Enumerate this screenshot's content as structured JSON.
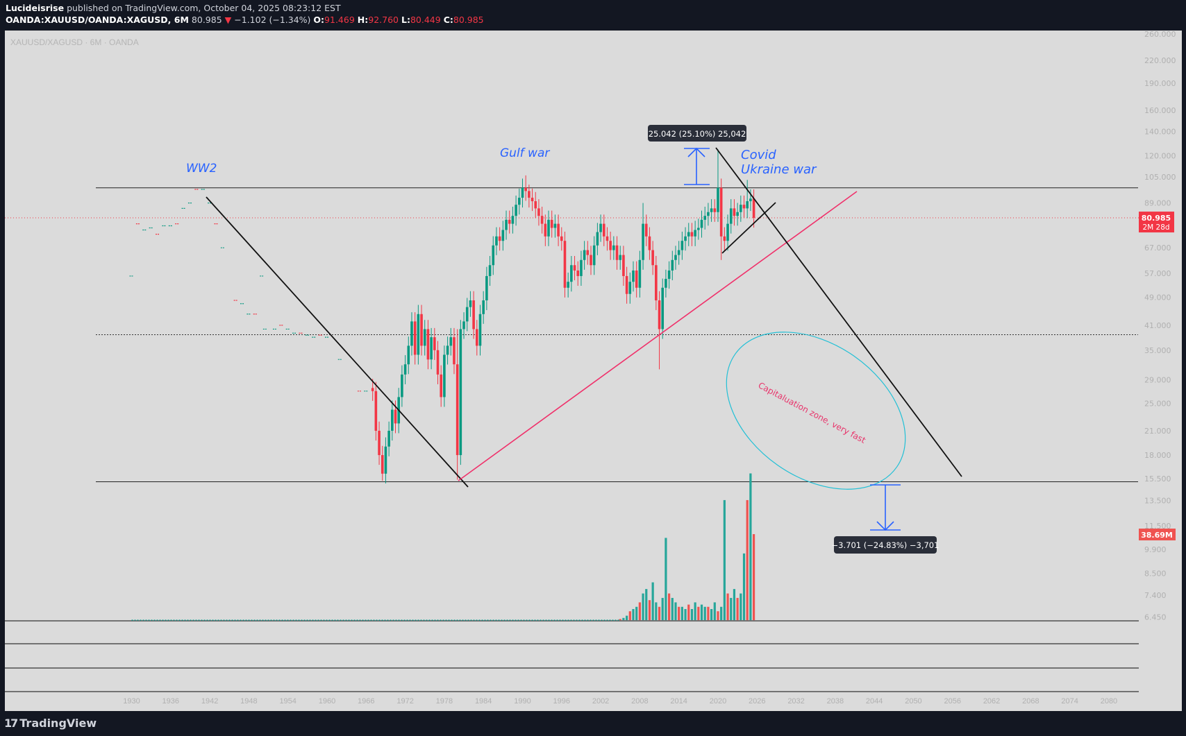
{
  "header": {
    "author": "Lucideisrise",
    "published": "published on TradingView.com, October 04, 2025 08:23:12 EST",
    "symbol": "OANDA:XAUUSD/OANDA:XAGUSD, 6M",
    "last": "80.985",
    "change": "−1.102 (−1.34%)",
    "o_label": "O:",
    "o": "91.469",
    "h_label": "H:",
    "h": "92.760",
    "l_label": "L:",
    "l": "80.449",
    "c_label": "C:",
    "c": "80.985"
  },
  "watermark": "XAUUSD/XAGUSD · 6M · OANDA",
  "footer": {
    "brand": "TradingView"
  },
  "colors": {
    "up": "#089981",
    "down": "#f23645",
    "vol_up": "#26a69a",
    "vol_down": "#ef5350",
    "annotation": "#2962ff",
    "trend_red": "#f0306a",
    "ellipse": "#22c0d6",
    "background": "#dbdbdb"
  },
  "chart_data": {
    "type": "candlestick",
    "title": "XAUUSD/XAGUSD · 6M · OANDA",
    "y_scale": "log",
    "ylim": [
      6.2,
      265
    ],
    "xlim": [
      1914,
      2092
    ],
    "y_ticks": [
      "260.000",
      "220.000",
      "190.000",
      "160.000",
      "140.000",
      "120.000",
      "105.000",
      "89.000",
      "67.000",
      "57.000",
      "49.000",
      "41.000",
      "35.000",
      "29.000",
      "25.000",
      "21.000",
      "18.000",
      "15.500",
      "13.500",
      "11.500",
      "9.900",
      "8.500",
      "7.400",
      "6.450"
    ],
    "x_ticks": [
      "1930",
      "1936",
      "1942",
      "1948",
      "1954",
      "1960",
      "1966",
      "1972",
      "1978",
      "1984",
      "1990",
      "1996",
      "2002",
      "2008",
      "2014",
      "2020",
      "2026",
      "2032",
      "2038",
      "2044",
      "2050",
      "2056",
      "2062",
      "2068",
      "2074",
      "2080"
    ],
    "early_points": [
      [
        1930,
        56
      ],
      [
        1931,
        78
      ],
      [
        1932,
        75
      ],
      [
        1933,
        76
      ],
      [
        1934,
        73
      ],
      [
        1935,
        77
      ],
      [
        1936,
        77
      ],
      [
        1937,
        78
      ],
      [
        1938,
        86
      ],
      [
        1939,
        89
      ],
      [
        1940,
        97
      ],
      [
        1941,
        97
      ],
      [
        1942,
        89
      ],
      [
        1943,
        78
      ],
      [
        1944,
        67
      ],
      [
        1950,
        56
      ],
      [
        1946,
        48
      ],
      [
        1947,
        47
      ],
      [
        1948,
        44
      ],
      [
        1949,
        44
      ],
      [
        1950.5,
        40
      ],
      [
        1952,
        40
      ],
      [
        1953,
        41
      ],
      [
        1954,
        40
      ],
      [
        1955,
        39
      ],
      [
        1956,
        39
      ],
      [
        1957,
        38.5
      ],
      [
        1958,
        38
      ],
      [
        1959,
        38.5
      ],
      [
        1960,
        38
      ],
      [
        1962,
        33
      ],
      [
        1965,
        27
      ],
      [
        1966,
        27
      ]
    ],
    "candles_start": 1967.0,
    "candles_step": 0.5,
    "closes": [
      27,
      21,
      18,
      16,
      19,
      21,
      24,
      22,
      26,
      30,
      32,
      36,
      42,
      34,
      44,
      36,
      40,
      33,
      38,
      35,
      30,
      26,
      34,
      36,
      38,
      32,
      18,
      40,
      42,
      46,
      48,
      40,
      36,
      44,
      48,
      56,
      60,
      68,
      72,
      70,
      75,
      80,
      78,
      82,
      88,
      92,
      98,
      96,
      92,
      90,
      86,
      82,
      78,
      72,
      80,
      76,
      78,
      72,
      70,
      52,
      54,
      60,
      58,
      56,
      62,
      66,
      64,
      60,
      68,
      74,
      78,
      72,
      70,
      66,
      68,
      62,
      64,
      56,
      50,
      54,
      58,
      52,
      62,
      78,
      72,
      66,
      60,
      48,
      40,
      52,
      55,
      58,
      62,
      64,
      66,
      70,
      72,
      74,
      72,
      75,
      76,
      80,
      82,
      84,
      86,
      84,
      98,
      72,
      70,
      78,
      86,
      82,
      84,
      88,
      86,
      90,
      91.5,
      80.985
    ],
    "wick_extremes": {
      "1968.5": {
        "low": 15.3
      },
      "1980.0": {
        "low": 15.4,
        "high": 40
      },
      "1990.5": {
        "high": 106
      },
      "1991.0": {
        "high": 100
      },
      "2011.0": {
        "low": 31
      },
      "2008.5": {
        "high": 89
      },
      "2020.0": {
        "high": 125
      },
      "2020.5": {
        "low": 62
      },
      "2024.5": {
        "high": 103
      }
    },
    "volume_start": 2005.0,
    "volume_unit": "M",
    "volume": [
      0.5,
      1,
      2,
      4,
      5,
      6,
      8,
      12,
      14,
      9,
      17,
      8,
      6,
      10,
      37,
      12,
      10,
      8,
      6,
      6,
      5,
      7,
      5,
      8,
      6,
      7,
      6,
      6,
      5,
      8,
      4,
      6,
      54,
      12,
      10,
      14,
      10,
      12,
      30,
      54,
      66,
      38.69
    ],
    "last_price_label": "80.985",
    "countdown_label": "2M 28d",
    "volume_label": "38.69M",
    "horizontal_levels": [
      98,
      38.6,
      15.2
    ],
    "annotations": {
      "ww2": "WW2",
      "gulf": "Gulf war",
      "covid": "Covid",
      "ukraine": "Ukraine war",
      "zone": "Capitaluation zone, very fast",
      "measure_up": "25.042 (25.10%) 25,042",
      "measure_down": "−3.701 (−24.83%) −3,701"
    }
  }
}
